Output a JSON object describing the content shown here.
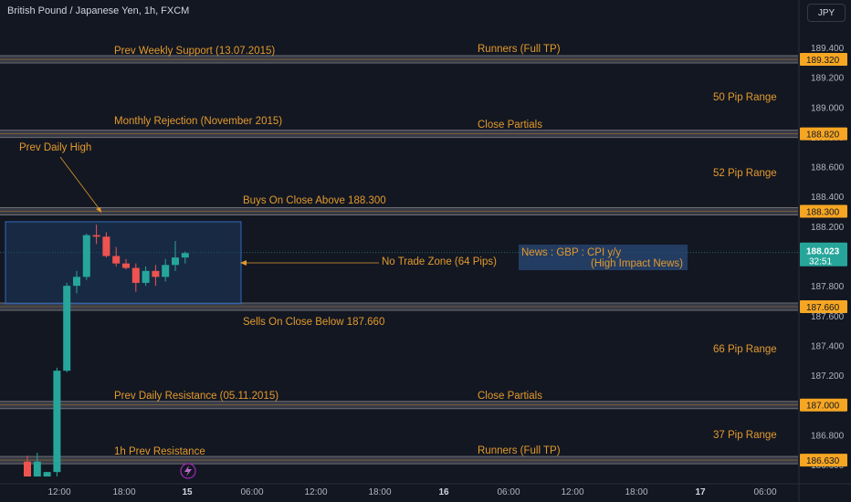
{
  "header": {
    "title": "British Pound / Japanese Yen, 1h, FXCM",
    "currency_label": "JPY"
  },
  "colors": {
    "background": "#131722",
    "bull": "#26a69a",
    "bear": "#ef5350",
    "annotation": "#e29a2c",
    "price_tag": "#f6a623",
    "zone_fill": "#1e3a5f",
    "zone_border": "#2f6bbf"
  },
  "price_axis": {
    "ticks": [
      "189.400",
      "189.200",
      "189.000",
      "188.800",
      "188.600",
      "188.400",
      "188.200",
      "188.000",
      "187.800",
      "187.600",
      "187.400",
      "187.200",
      "187.000",
      "186.800",
      "186.600"
    ],
    "tags": [
      {
        "value": "189.320",
        "price": 189.32
      },
      {
        "value": "188.820",
        "price": 188.82
      },
      {
        "value": "188.300",
        "price": 188.3
      },
      {
        "value": "187.660",
        "price": 187.66
      },
      {
        "value": "187.000",
        "price": 187.0
      },
      {
        "value": "186.630",
        "price": 186.63
      }
    ],
    "current_price": "188.023",
    "countdown": "32:51"
  },
  "time_axis": {
    "labels": [
      {
        "text": "12:00",
        "bold": false
      },
      {
        "text": "18:00",
        "bold": false
      },
      {
        "text": "15",
        "bold": true
      },
      {
        "text": "06:00",
        "bold": false
      },
      {
        "text": "12:00",
        "bold": false
      },
      {
        "text": "18:00",
        "bold": false
      },
      {
        "text": "16",
        "bold": true
      },
      {
        "text": "06:00",
        "bold": false
      },
      {
        "text": "12:00",
        "bold": false
      },
      {
        "text": "18:00",
        "bold": false
      },
      {
        "text": "17",
        "bold": true
      },
      {
        "text": "06:00",
        "bold": false
      }
    ]
  },
  "annotations": {
    "prev_weekly_support": "Prev Weekly Support (13.07.2015)",
    "runners_top": "Runners (Full TP)",
    "pip_range_50": "50 Pip Range",
    "monthly_rejection": "Monthly Rejection (November 2015)",
    "close_partials_top": "Close Partials",
    "prev_daily_high": "Prev Daily High",
    "pip_range_52": "52 Pip Range",
    "buys_on_close": "Buys On Close Above 188.300",
    "no_trade_zone": "No Trade Zone (64 Pips)",
    "news_line1": "News : GBP : CPI y/y",
    "news_line2": "(High Impact News)",
    "sells_on_close": "Sells On Close Below 187.660",
    "pip_range_66": "66 Pip Range",
    "prev_daily_resistance": "Prev Daily Resistance (05.11.2015)",
    "close_partials_bottom": "Close Partials",
    "pip_range_37": "37 Pip Range",
    "prev_resistance_1h": "1h Prev Resistance",
    "runners_bottom": "Runners (Full TP)"
  },
  "chart_data": {
    "type": "candlestick",
    "ylim": [
      186.52,
      189.56
    ],
    "candles": [
      {
        "o": 186.62,
        "h": 186.66,
        "l": 186.52,
        "c": 186.52
      },
      {
        "o": 186.52,
        "h": 186.68,
        "l": 186.52,
        "c": 186.62
      },
      {
        "o": 186.52,
        "h": 186.55,
        "l": 186.52,
        "c": 186.55
      },
      {
        "o": 186.55,
        "h": 187.25,
        "l": 186.52,
        "c": 187.23
      },
      {
        "o": 187.23,
        "h": 187.82,
        "l": 187.22,
        "c": 187.8
      },
      {
        "o": 187.8,
        "h": 187.9,
        "l": 187.75,
        "c": 187.86
      },
      {
        "o": 187.86,
        "h": 188.15,
        "l": 187.84,
        "c": 188.14
      },
      {
        "o": 188.14,
        "h": 188.21,
        "l": 188.08,
        "c": 188.13
      },
      {
        "o": 188.13,
        "h": 188.16,
        "l": 187.99,
        "c": 188.0
      },
      {
        "o": 188.0,
        "h": 188.06,
        "l": 187.93,
        "c": 187.95
      },
      {
        "o": 187.95,
        "h": 187.98,
        "l": 187.91,
        "c": 187.92
      },
      {
        "o": 187.92,
        "h": 187.95,
        "l": 187.76,
        "c": 187.82
      },
      {
        "o": 187.82,
        "h": 187.93,
        "l": 187.8,
        "c": 187.9
      },
      {
        "o": 187.9,
        "h": 187.94,
        "l": 187.8,
        "c": 187.86
      },
      {
        "o": 187.86,
        "h": 187.98,
        "l": 187.83,
        "c": 187.94
      },
      {
        "o": 187.94,
        "h": 188.1,
        "l": 187.9,
        "c": 187.99
      },
      {
        "o": 187.99,
        "h": 188.03,
        "l": 187.95,
        "c": 188.02
      }
    ]
  }
}
